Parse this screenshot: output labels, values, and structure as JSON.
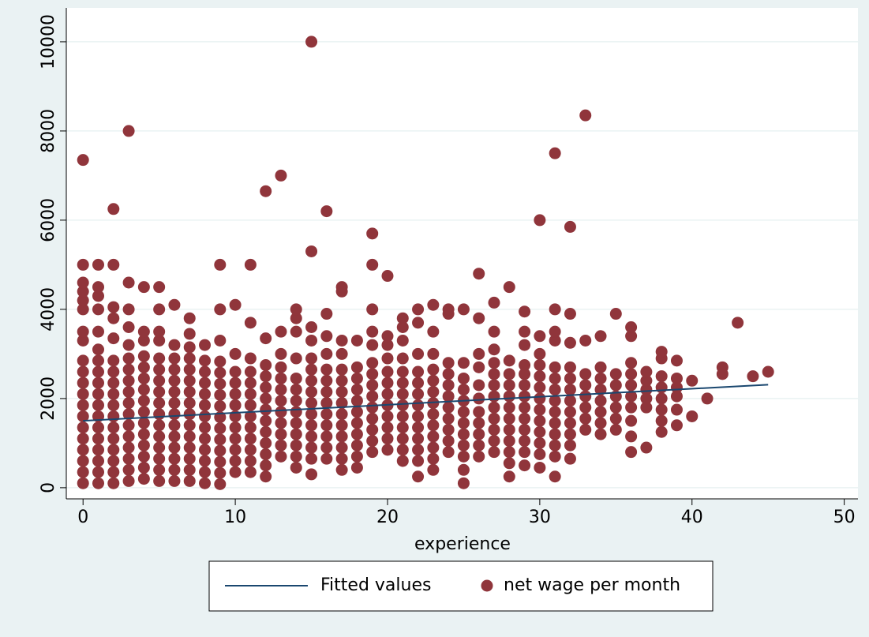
{
  "chart_data": {
    "type": "scatter",
    "x_label": "experience",
    "xlim": [
      -1.1,
      50.9
    ],
    "ylim": [
      -250,
      10760
    ],
    "xticks": [
      0,
      10,
      20,
      30,
      40,
      50
    ],
    "yticks": [
      0,
      2000,
      4000,
      6000,
      8000,
      10000
    ],
    "grid": true,
    "legend": "bottom",
    "series": [
      {
        "name": "Fitted values",
        "type": "line",
        "color": "#1a476f",
        "x": [
          0,
          45
        ],
        "values": [
          1500,
          2310
        ]
      },
      {
        "name": "net wage per month",
        "type": "scatter",
        "color": "#90353b",
        "x": [
          0,
          0,
          0,
          0,
          0,
          0,
          0,
          0,
          0,
          0,
          0,
          0,
          0,
          0,
          0,
          0,
          0,
          0,
          0,
          0,
          1,
          1,
          1,
          1,
          1,
          1,
          1,
          1,
          1,
          1,
          1,
          1,
          1,
          1,
          1,
          1,
          1,
          1,
          2,
          2,
          2,
          2,
          2,
          2,
          2,
          2,
          2,
          2,
          2,
          2,
          2,
          2,
          2,
          2,
          2,
          3,
          3,
          3,
          3,
          3,
          3,
          3,
          3,
          3,
          3,
          3,
          3,
          3,
          3,
          3,
          3,
          3,
          4,
          4,
          4,
          4,
          4,
          4,
          4,
          4,
          4,
          4,
          4,
          4,
          4,
          4,
          4,
          5,
          5,
          5,
          5,
          5,
          5,
          5,
          5,
          5,
          5,
          5,
          5,
          5,
          5,
          5,
          5,
          6,
          6,
          6,
          6,
          6,
          6,
          6,
          6,
          6,
          6,
          6,
          6,
          6,
          6,
          7,
          7,
          7,
          7,
          7,
          7,
          7,
          7,
          7,
          7,
          7,
          7,
          7,
          7,
          7,
          8,
          8,
          8,
          8,
          8,
          8,
          8,
          8,
          8,
          8,
          8,
          8,
          8,
          9,
          9,
          9,
          9,
          9,
          9,
          9,
          9,
          9,
          9,
          9,
          9,
          9,
          9,
          9,
          10,
          10,
          10,
          10,
          10,
          10,
          10,
          10,
          10,
          10,
          10,
          10,
          11,
          11,
          11,
          11,
          11,
          11,
          11,
          11,
          11,
          11,
          11,
          11,
          11,
          12,
          12,
          12,
          12,
          12,
          12,
          12,
          12,
          12,
          12,
          12,
          12,
          12,
          13,
          13,
          13,
          13,
          13,
          13,
          13,
          13,
          13,
          13,
          13,
          13,
          14,
          14,
          14,
          14,
          14,
          14,
          14,
          14,
          14,
          14,
          14,
          14,
          14,
          15,
          15,
          15,
          15,
          15,
          15,
          15,
          15,
          15,
          15,
          15,
          15,
          15,
          15,
          15,
          16,
          16,
          16,
          16,
          16,
          16,
          16,
          16,
          16,
          16,
          16,
          16,
          16,
          17,
          17,
          17,
          17,
          17,
          17,
          17,
          17,
          17,
          17,
          17,
          17,
          17,
          17,
          18,
          18,
          18,
          18,
          18,
          18,
          18,
          18,
          18,
          18,
          18,
          19,
          19,
          19,
          19,
          19,
          19,
          19,
          19,
          19,
          19,
          19,
          19,
          19,
          19,
          20,
          20,
          20,
          20,
          20,
          20,
          20,
          20,
          20,
          20,
          20,
          20,
          21,
          21,
          21,
          21,
          21,
          21,
          21,
          21,
          21,
          21,
          21,
          21,
          21,
          22,
          22,
          22,
          22,
          22,
          22,
          22,
          22,
          22,
          22,
          22,
          22,
          22,
          23,
          23,
          23,
          23,
          23,
          23,
          23,
          23,
          23,
          23,
          23,
          23,
          23,
          24,
          24,
          24,
          24,
          24,
          24,
          24,
          24,
          24,
          24,
          24,
          25,
          25,
          25,
          25,
          25,
          25,
          25,
          25,
          25,
          25,
          25,
          25,
          26,
          26,
          26,
          26,
          26,
          26,
          26,
          26,
          26,
          26,
          26,
          27,
          27,
          27,
          27,
          27,
          27,
          27,
          27,
          27,
          27,
          27,
          27,
          28,
          28,
          28,
          28,
          28,
          28,
          28,
          28,
          28,
          28,
          28,
          28,
          29,
          29,
          29,
          29,
          29,
          29,
          29,
          29,
          29,
          29,
          29,
          29,
          29,
          30,
          30,
          30,
          30,
          30,
          30,
          30,
          30,
          30,
          30,
          30,
          30,
          30,
          31,
          31,
          31,
          31,
          31,
          31,
          31,
          31,
          31,
          31,
          31,
          31,
          31,
          31,
          32,
          32,
          32,
          32,
          32,
          32,
          32,
          32,
          32,
          32,
          32,
          32,
          33,
          33,
          33,
          33,
          33,
          33,
          33,
          33,
          34,
          34,
          34,
          34,
          34,
          34,
          34,
          34,
          35,
          35,
          35,
          35,
          35,
          35,
          35,
          36,
          36,
          36,
          36,
          36,
          36,
          36,
          36,
          36,
          36,
          37,
          37,
          37,
          37,
          37,
          37,
          38,
          38,
          38,
          38,
          38,
          38,
          38,
          38,
          39,
          39,
          39,
          39,
          39,
          39,
          40,
          40,
          41,
          42,
          42,
          43,
          44,
          45
        ],
        "values": [
          100,
          350,
          600,
          850,
          1100,
          1350,
          1600,
          1850,
          2100,
          2350,
          2600,
          2850,
          3300,
          3500,
          4000,
          4200,
          4400,
          4600,
          5000,
          7350,
          100,
          350,
          600,
          850,
          1100,
          1350,
          1600,
          1850,
          2100,
          2350,
          2600,
          2850,
          3100,
          3500,
          4000,
          4300,
          4500,
          5000,
          100,
          350,
          600,
          850,
          1100,
          1350,
          1600,
          1850,
          2100,
          2350,
          2600,
          2850,
          3350,
          3800,
          4050,
          5000,
          6250,
          150,
          400,
          650,
          900,
          1150,
          1400,
          1650,
          1900,
          2150,
          2400,
          2650,
          2900,
          3200,
          3600,
          4000,
          4600,
          8000,
          200,
          450,
          700,
          950,
          1200,
          1450,
          1700,
          1950,
          2200,
          2450,
          2700,
          2950,
          3300,
          3500,
          4500,
          150,
          400,
          650,
          900,
          1150,
          1400,
          1650,
          1900,
          2150,
          2400,
          2650,
          2900,
          3300,
          3500,
          4000,
          4500,
          150,
          400,
          650,
          900,
          1150,
          1400,
          1650,
          1900,
          2150,
          2400,
          2650,
          2900,
          3200,
          4100,
          150,
          400,
          650,
          900,
          1150,
          1400,
          1650,
          1900,
          2150,
          2400,
          2650,
          2900,
          3150,
          3450,
          3800,
          100,
          350,
          600,
          850,
          1100,
          1350,
          1600,
          1850,
          2100,
          2350,
          2600,
          2850,
          3200,
          80,
          330,
          580,
          830,
          1080,
          1330,
          1580,
          1830,
          2080,
          2330,
          2580,
          2830,
          3300,
          4000,
          5000,
          350,
          600,
          850,
          1100,
          1350,
          1600,
          1850,
          2100,
          2350,
          2600,
          3000,
          4100,
          350,
          600,
          850,
          1100,
          1350,
          1600,
          1850,
          2100,
          2350,
          2600,
          2900,
          3700,
          5000,
          250,
          500,
          750,
          1000,
          1250,
          1500,
          1750,
          2000,
          2250,
          2500,
          2750,
          3350,
          6650,
          700,
          950,
          1200,
          1450,
          1700,
          1950,
          2200,
          2450,
          2700,
          3000,
          3500,
          7000,
          450,
          700,
          950,
          1200,
          1450,
          1700,
          1950,
          2200,
          2450,
          2900,
          3500,
          3800,
          4000,
          300,
          650,
          900,
          1150,
          1400,
          1650,
          1900,
          2150,
          2400,
          2650,
          2900,
          3300,
          3600,
          5300,
          10000,
          650,
          900,
          1150,
          1400,
          1650,
          1900,
          2150,
          2400,
          2650,
          3000,
          3400,
          3900,
          6200,
          400,
          650,
          900,
          1150,
          1400,
          1650,
          1900,
          2150,
          2400,
          2650,
          3000,
          3300,
          4400,
          4500,
          450,
          700,
          950,
          1200,
          1450,
          1700,
          1950,
          2200,
          2450,
          2700,
          3300,
          800,
          1050,
          1300,
          1550,
          1800,
          2050,
          2300,
          2550,
          2800,
          3200,
          3500,
          4000,
          5000,
          5700,
          850,
          1100,
          1350,
          1600,
          1850,
          2100,
          2350,
          2600,
          2900,
          3200,
          3400,
          4750,
          600,
          850,
          1100,
          1350,
          1600,
          1850,
          2100,
          2350,
          2600,
          2900,
          3300,
          3600,
          3800,
          250,
          600,
          850,
          1100,
          1350,
          1600,
          1850,
          2100,
          2350,
          2600,
          3000,
          3700,
          4000,
          400,
          650,
          900,
          1150,
          1400,
          1650,
          1900,
          2150,
          2400,
          2650,
          3000,
          3500,
          4100,
          800,
          1050,
          1300,
          1550,
          1800,
          2050,
          2300,
          2550,
          2800,
          3900,
          4000,
          100,
          400,
          700,
          950,
          1200,
          1450,
          1700,
          1950,
          2200,
          2450,
          2800,
          4000,
          700,
          950,
          1200,
          1450,
          1700,
          2000,
          2300,
          2700,
          3000,
          3800,
          4800,
          800,
          1050,
          1300,
          1550,
          1800,
          2050,
          2300,
          2550,
          2800,
          3100,
          3500,
          4150,
          250,
          550,
          800,
          1050,
          1300,
          1550,
          1800,
          2050,
          2300,
          2550,
          2850,
          4500,
          500,
          800,
          1050,
          1300,
          1550,
          1800,
          2050,
          2300,
          2550,
          2750,
          3200,
          3500,
          3950,
          450,
          750,
          1000,
          1250,
          1500,
          1750,
          2000,
          2250,
          2500,
          2750,
          3000,
          3400,
          6000,
          250,
          700,
          950,
          1200,
          1450,
          1700,
          1950,
          2200,
          2450,
          2700,
          3300,
          3500,
          4000,
          7500,
          650,
          950,
          1200,
          1450,
          1700,
          1950,
          2200,
          2450,
          2700,
          3250,
          3900,
          5850,
          1300,
          1550,
          1800,
          2050,
          2300,
          2550,
          3300,
          8350,
          1200,
          1450,
          1700,
          1950,
          2200,
          2450,
          2700,
          3400,
          1300,
          1550,
          1800,
          2050,
          2300,
          2550,
          3900,
          800,
          1150,
          1500,
          1800,
          2050,
          2300,
          2550,
          2800,
          3400,
          3600,
          900,
          1800,
          2000,
          2200,
          2400,
          2600,
          1250,
          1500,
          1750,
          2000,
          2250,
          2500,
          2900,
          3050,
          1400,
          1750,
          2050,
          2250,
          2450,
          2850,
          1600,
          2400,
          2000,
          2550,
          2700,
          3700,
          2500,
          2600
        ]
      }
    ]
  }
}
